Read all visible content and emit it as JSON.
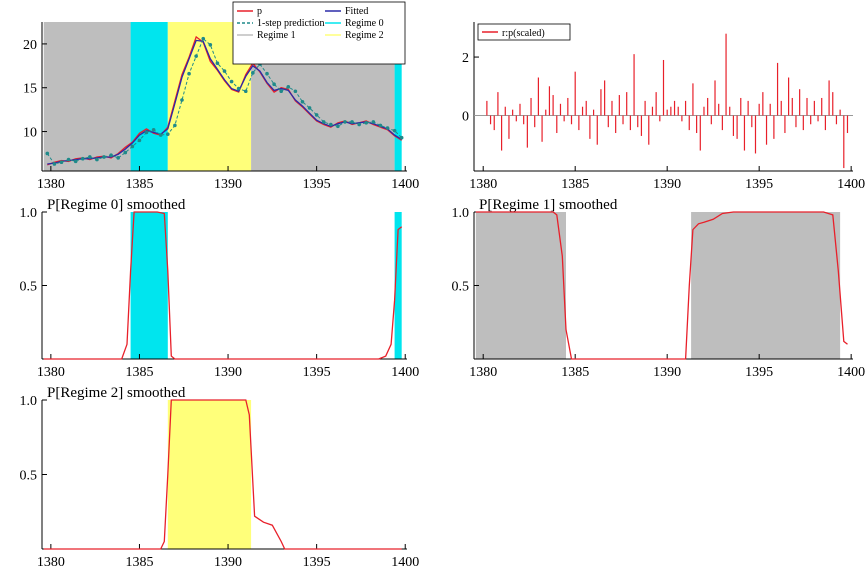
{
  "colors": {
    "regime0": "#00e5ee",
    "regime1": "#bebebe",
    "regime2": "#ffff7a",
    "actual": "#e8202a",
    "fitted": "#2a2aa8",
    "prediction": "#1f8a8a",
    "residual": "#e8202a"
  },
  "chart_data": [
    {
      "id": "p1",
      "type": "line",
      "title": "",
      "legend": {
        "placement": "top-right",
        "entries": [
          {
            "key": "p",
            "label": "p"
          },
          {
            "key": "fitted",
            "label": "Fitted"
          },
          {
            "key": "pred",
            "label": "1-step prediction"
          },
          {
            "key": "r0",
            "label": "Regime 0"
          },
          {
            "key": "r1",
            "label": "Regime 1"
          },
          {
            "key": "r2",
            "label": "Regime 2"
          }
        ]
      },
      "xlim": [
        1379.5,
        1400.1
      ],
      "ylim": [
        5.5,
        22.5
      ],
      "xticks": [
        1380,
        1385,
        1390,
        1395,
        1400
      ],
      "yticks": [
        10,
        15,
        20
      ],
      "bands": [
        {
          "regime": "regime1",
          "x0": 1379.6,
          "x1": 1384.5
        },
        {
          "regime": "regime0",
          "x0": 1384.5,
          "x1": 1386.6
        },
        {
          "regime": "regime2",
          "x0": 1386.6,
          "x1": 1391.3
        },
        {
          "regime": "regime1",
          "x0": 1391.3,
          "x1": 1399.4
        },
        {
          "regime": "regime0",
          "x0": 1399.4,
          "x1": 1399.8
        }
      ],
      "series": [
        {
          "key": "p",
          "x": [
            1379.8,
            1380.2,
            1380.6,
            1381,
            1381.4,
            1381.8,
            1382.2,
            1382.6,
            1383,
            1383.4,
            1383.8,
            1384.2,
            1384.6,
            1385,
            1385.4,
            1385.8,
            1386.2,
            1386.6,
            1387,
            1387.4,
            1387.8,
            1388.2,
            1388.6,
            1389,
            1389.4,
            1389.8,
            1390.2,
            1390.6,
            1391,
            1391.4,
            1391.8,
            1392.2,
            1392.6,
            1393,
            1393.4,
            1393.8,
            1394.2,
            1394.6,
            1395,
            1395.4,
            1395.8,
            1396.2,
            1396.6,
            1397,
            1397.4,
            1397.8,
            1398.2,
            1398.6,
            1399,
            1399.4,
            1399.8
          ],
          "y": [
            6.2,
            6.5,
            6.7,
            6.6,
            6.9,
            7.0,
            6.8,
            7.1,
            7.2,
            7.0,
            7.5,
            8.2,
            8.8,
            9.8,
            10.3,
            9.8,
            9.6,
            10.5,
            13.5,
            16.5,
            18.5,
            20.8,
            20.2,
            18.0,
            17.0,
            15.8,
            14.8,
            14.5,
            16.5,
            17.8,
            16.8,
            15.5,
            14.5,
            15.0,
            14.8,
            13.5,
            12.8,
            12.0,
            11.2,
            10.8,
            10.5,
            11.0,
            11.2,
            10.8,
            11.0,
            11.2,
            10.8,
            10.5,
            10.2,
            9.5,
            9.0
          ]
        },
        {
          "key": "fitted",
          "x": [
            1379.8,
            1380.2,
            1380.6,
            1381,
            1381.4,
            1381.8,
            1382.2,
            1382.6,
            1383,
            1383.4,
            1383.8,
            1384.2,
            1384.6,
            1385,
            1385.4,
            1385.8,
            1386.2,
            1386.6,
            1387,
            1387.4,
            1387.8,
            1388.2,
            1388.6,
            1389,
            1389.4,
            1389.8,
            1390.2,
            1390.6,
            1391,
            1391.4,
            1391.8,
            1392.2,
            1392.6,
            1393,
            1393.4,
            1393.8,
            1394.2,
            1394.6,
            1395,
            1395.4,
            1395.8,
            1396.2,
            1396.6,
            1397,
            1397.4,
            1397.8,
            1398.2,
            1398.6,
            1399,
            1399.4,
            1399.8
          ],
          "y": [
            6.3,
            6.4,
            6.6,
            6.7,
            6.8,
            6.9,
            6.9,
            7.0,
            7.1,
            7.1,
            7.4,
            8.0,
            8.7,
            9.6,
            10.1,
            9.9,
            9.7,
            10.3,
            13.2,
            16.2,
            18.3,
            20.4,
            20.3,
            18.3,
            17.1,
            15.9,
            14.9,
            14.6,
            16.3,
            17.5,
            16.9,
            15.6,
            14.7,
            14.9,
            14.7,
            13.6,
            12.9,
            12.1,
            11.3,
            10.9,
            10.6,
            10.9,
            11.1,
            10.9,
            11.0,
            11.1,
            10.9,
            10.6,
            10.3,
            9.6,
            9.1
          ]
        },
        {
          "key": "pred",
          "x": [
            1379.8,
            1380.2,
            1380.6,
            1381,
            1381.4,
            1381.8,
            1382.2,
            1382.6,
            1383,
            1383.4,
            1383.8,
            1384.2,
            1384.6,
            1385,
            1385.4,
            1385.8,
            1386.2,
            1386.6,
            1387,
            1387.4,
            1387.8,
            1388.2,
            1388.6,
            1389,
            1389.4,
            1389.8,
            1390.2,
            1390.6,
            1391,
            1391.4,
            1391.8,
            1392.2,
            1392.6,
            1393,
            1393.4,
            1393.8,
            1394.2,
            1394.6,
            1395,
            1395.4,
            1395.8,
            1396.2,
            1396.6,
            1397,
            1397.4,
            1397.8,
            1398.2,
            1398.6,
            1399,
            1399.4,
            1399.8
          ],
          "y": [
            7.5,
            6.3,
            6.5,
            6.8,
            6.6,
            6.9,
            7.1,
            6.8,
            7.1,
            7.3,
            7.0,
            7.6,
            8.3,
            9.0,
            9.9,
            10.2,
            9.6,
            9.7,
            10.7,
            13.6,
            16.6,
            18.6,
            20.6,
            19.9,
            17.8,
            16.9,
            15.7,
            14.9,
            14.6,
            16.7,
            17.7,
            16.6,
            15.4,
            14.6,
            15.1,
            14.6,
            13.4,
            12.7,
            11.9,
            11.1,
            10.8,
            10.6,
            11.1,
            11.1,
            10.8,
            11.0,
            11.1,
            10.7,
            10.4,
            10.1,
            9.3
          ]
        }
      ]
    },
    {
      "id": "p2",
      "type": "bar",
      "title": "",
      "legend": {
        "placement": "top-left",
        "entries": [
          {
            "key": "rp",
            "label": "r:p(scaled)"
          }
        ]
      },
      "xlim": [
        1379.5,
        1400.1
      ],
      "ylim": [
        -1.9,
        3.2
      ],
      "xticks": [
        1380,
        1385,
        1390,
        1395,
        1400
      ],
      "yticks": [
        0,
        2
      ],
      "series": [
        {
          "key": "rp",
          "x": [
            1380.2,
            1380.4,
            1380.6,
            1380.8,
            1381.0,
            1381.2,
            1381.4,
            1381.6,
            1381.8,
            1382.0,
            1382.2,
            1382.4,
            1382.6,
            1382.8,
            1383.0,
            1383.2,
            1383.4,
            1383.6,
            1383.8,
            1384.0,
            1384.2,
            1384.4,
            1384.6,
            1384.8,
            1385.0,
            1385.2,
            1385.4,
            1385.6,
            1385.8,
            1386.0,
            1386.2,
            1386.4,
            1386.6,
            1386.8,
            1387.0,
            1387.2,
            1387.4,
            1387.6,
            1387.8,
            1388.0,
            1388.2,
            1388.4,
            1388.6,
            1388.8,
            1389.0,
            1389.2,
            1389.4,
            1389.6,
            1389.8,
            1390.0,
            1390.2,
            1390.4,
            1390.6,
            1390.8,
            1391.0,
            1391.2,
            1391.4,
            1391.6,
            1391.8,
            1392.0,
            1392.2,
            1392.4,
            1392.6,
            1392.8,
            1393.0,
            1393.2,
            1393.4,
            1393.6,
            1393.8,
            1394.0,
            1394.2,
            1394.4,
            1394.6,
            1394.8,
            1395.0,
            1395.2,
            1395.4,
            1395.6,
            1395.8,
            1396.0,
            1396.2,
            1396.4,
            1396.6,
            1396.8,
            1397.0,
            1397.2,
            1397.4,
            1397.6,
            1397.8,
            1398.0,
            1398.2,
            1398.4,
            1398.6,
            1398.8,
            1399.0,
            1399.2,
            1399.4,
            1399.6,
            1399.8
          ],
          "values": [
            0.5,
            -0.3,
            -0.5,
            0.8,
            -1.2,
            0.3,
            -0.8,
            0.2,
            -0.2,
            0.4,
            -0.3,
            -1.1,
            0.6,
            -0.4,
            1.3,
            -0.9,
            0.2,
            1.0,
            0.7,
            -0.6,
            0.4,
            -0.2,
            0.6,
            -0.3,
            1.5,
            -0.5,
            0.3,
            0.5,
            -0.8,
            0.2,
            -1.0,
            0.9,
            1.2,
            -0.4,
            0.5,
            -0.6,
            0.7,
            -0.3,
            0.8,
            -0.5,
            2.1,
            -0.4,
            -0.7,
            0.5,
            -1.0,
            0.3,
            0.8,
            -0.2,
            1.9,
            0.2,
            0.3,
            0.5,
            0.3,
            -0.2,
            0.5,
            -0.5,
            1.1,
            -0.6,
            -1.2,
            0.3,
            0.6,
            -0.3,
            1.2,
            0.4,
            -0.5,
            2.8,
            0.3,
            -0.7,
            -0.8,
            0.6,
            -1.2,
            0.5,
            -0.4,
            -1.3,
            0.4,
            0.8,
            -1.0,
            0.4,
            -0.8,
            1.8,
            0.5,
            -0.6,
            1.3,
            0.6,
            -0.4,
            0.9,
            -0.5,
            0.6,
            -0.3,
            0.5,
            -0.2,
            0.6,
            -0.5,
            1.2,
            0.8,
            -0.3,
            0.2,
            -1.8,
            -0.6
          ]
        }
      ]
    },
    {
      "id": "p3",
      "type": "line",
      "title": "P[Regime 0] smoothed",
      "xlim": [
        1379.5,
        1400.1
      ],
      "ylim": [
        0,
        1
      ],
      "xticks": [
        1380,
        1385,
        1390,
        1395,
        1400
      ],
      "yticks": [
        0.5,
        1.0
      ],
      "ytick_labels": [
        "0.5",
        "1.0"
      ],
      "bands": [
        {
          "regime": "regime0",
          "x0": 1384.5,
          "x1": 1386.6
        },
        {
          "regime": "regime0",
          "x0": 1399.4,
          "x1": 1399.8
        }
      ],
      "series": [
        {
          "key": "prob",
          "x": [
            1379.6,
            1384.0,
            1384.3,
            1384.5,
            1384.7,
            1385.0,
            1386.0,
            1386.4,
            1386.6,
            1386.8,
            1387.0,
            1398.5,
            1398.9,
            1399.2,
            1399.4,
            1399.6,
            1399.8
          ],
          "y": [
            0,
            0,
            0.1,
            0.6,
            1.0,
            1.0,
            1.0,
            0.99,
            0.6,
            0.02,
            0,
            0,
            0.02,
            0.1,
            0.4,
            0.88,
            0.9
          ]
        }
      ]
    },
    {
      "id": "p4",
      "type": "line",
      "title": "P[Regime 1] smoothed",
      "xlim": [
        1379.5,
        1400.1
      ],
      "ylim": [
        0,
        1
      ],
      "xticks": [
        1380,
        1385,
        1390,
        1395,
        1400
      ],
      "yticks": [
        0.5,
        1.0
      ],
      "ytick_labels": [
        "0.5",
        "1.0"
      ],
      "bands": [
        {
          "regime": "regime1",
          "x0": 1379.6,
          "x1": 1384.5
        },
        {
          "regime": "regime1",
          "x0": 1391.3,
          "x1": 1399.4
        }
      ],
      "series": [
        {
          "key": "prob",
          "x": [
            1379.6,
            1383.8,
            1384.0,
            1384.3,
            1384.5,
            1384.8,
            1391.0,
            1391.2,
            1391.4,
            1391.7,
            1392.0,
            1392.5,
            1393.0,
            1393.6,
            1394.0,
            1398.5,
            1399.0,
            1399.3,
            1399.6,
            1399.8
          ],
          "y": [
            1,
            1,
            0.98,
            0.7,
            0.2,
            0,
            0,
            0.5,
            0.88,
            0.92,
            0.93,
            0.95,
            0.99,
            1.0,
            1.0,
            1.0,
            0.98,
            0.6,
            0.12,
            0.1
          ]
        }
      ]
    },
    {
      "id": "p5",
      "type": "line",
      "title": "P[Regime 2] smoothed",
      "xlim": [
        1379.5,
        1400.1
      ],
      "ylim": [
        0,
        1
      ],
      "xticks": [
        1380,
        1385,
        1390,
        1395,
        1400
      ],
      "yticks": [
        0.5,
        1.0
      ],
      "ytick_labels": [
        "0.5",
        "1.0"
      ],
      "bands": [
        {
          "regime": "regime2",
          "x0": 1386.6,
          "x1": 1391.3
        }
      ],
      "series": [
        {
          "key": "prob",
          "x": [
            1379.6,
            1386.2,
            1386.4,
            1386.6,
            1386.8,
            1391.0,
            1391.2,
            1391.5,
            1392.0,
            1392.5,
            1393.0,
            1393.2,
            1399.8
          ],
          "y": [
            0,
            0,
            0.05,
            0.5,
            1.0,
            1.0,
            0.9,
            0.22,
            0.18,
            0.16,
            0.05,
            0,
            0
          ]
        }
      ]
    }
  ]
}
